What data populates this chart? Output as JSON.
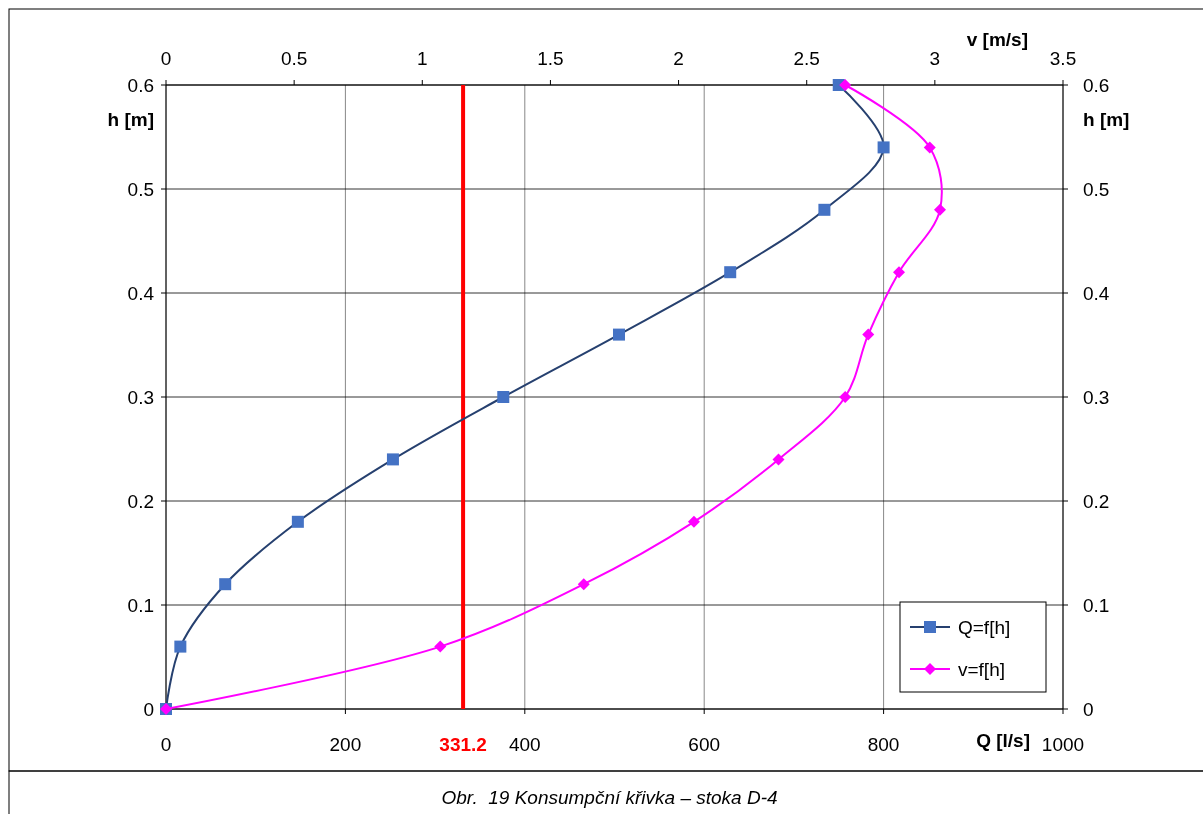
{
  "chart_data": {
    "type": "line",
    "xlabel": "Q [l/s]",
    "x2label": "v [m/s]",
    "ylabel": "h [m]",
    "y2label": "h [m]",
    "xlim": [
      0,
      1000
    ],
    "xticks": [
      0,
      200,
      400,
      600,
      800,
      1000
    ],
    "x2lim": [
      0,
      3.5
    ],
    "x2ticks": [
      0,
      0.5,
      1,
      1.5,
      2,
      2.5,
      3,
      3.5
    ],
    "ylim": [
      0,
      0.6
    ],
    "yticks": [
      0,
      0.1,
      0.2,
      0.3,
      0.4,
      0.5,
      0.6
    ],
    "y2lim": [
      0,
      0.6
    ],
    "y2ticks": [
      0,
      0.1,
      0.2,
      0.3,
      0.4,
      0.5,
      0.6
    ],
    "grid": true,
    "legend": "bottom right",
    "series": [
      {
        "name": "Q=f[h]",
        "color": "#4472c4",
        "marker": "square",
        "x": [
          0,
          16,
          66,
          147,
          253,
          376,
          505,
          629,
          734,
          800,
          750
        ],
        "values": [
          0,
          0.06,
          0.12,
          0.18,
          0.24,
          0.3,
          0.36,
          0.42,
          0.48,
          0.54,
          0.6
        ]
      },
      {
        "name": "v=f[h]",
        "color": "#ff00ff",
        "marker": "diamond",
        "axis": "x2",
        "x": [
          0,
          1.07,
          1.63,
          2.06,
          2.39,
          2.65,
          2.74,
          2.86,
          3.02,
          2.98,
          2.65
        ],
        "values": [
          0,
          0.06,
          0.12,
          0.18,
          0.24,
          0.3,
          0.36,
          0.42,
          0.48,
          0.54,
          0.6
        ]
      }
    ],
    "ref_lines": [
      {
        "axis": "x",
        "value": 331.2,
        "label": "331.2",
        "color": "#ff0000"
      }
    ],
    "annotations": [
      "Obr.  19 Konsumpční křivka – stoka D-4"
    ]
  }
}
